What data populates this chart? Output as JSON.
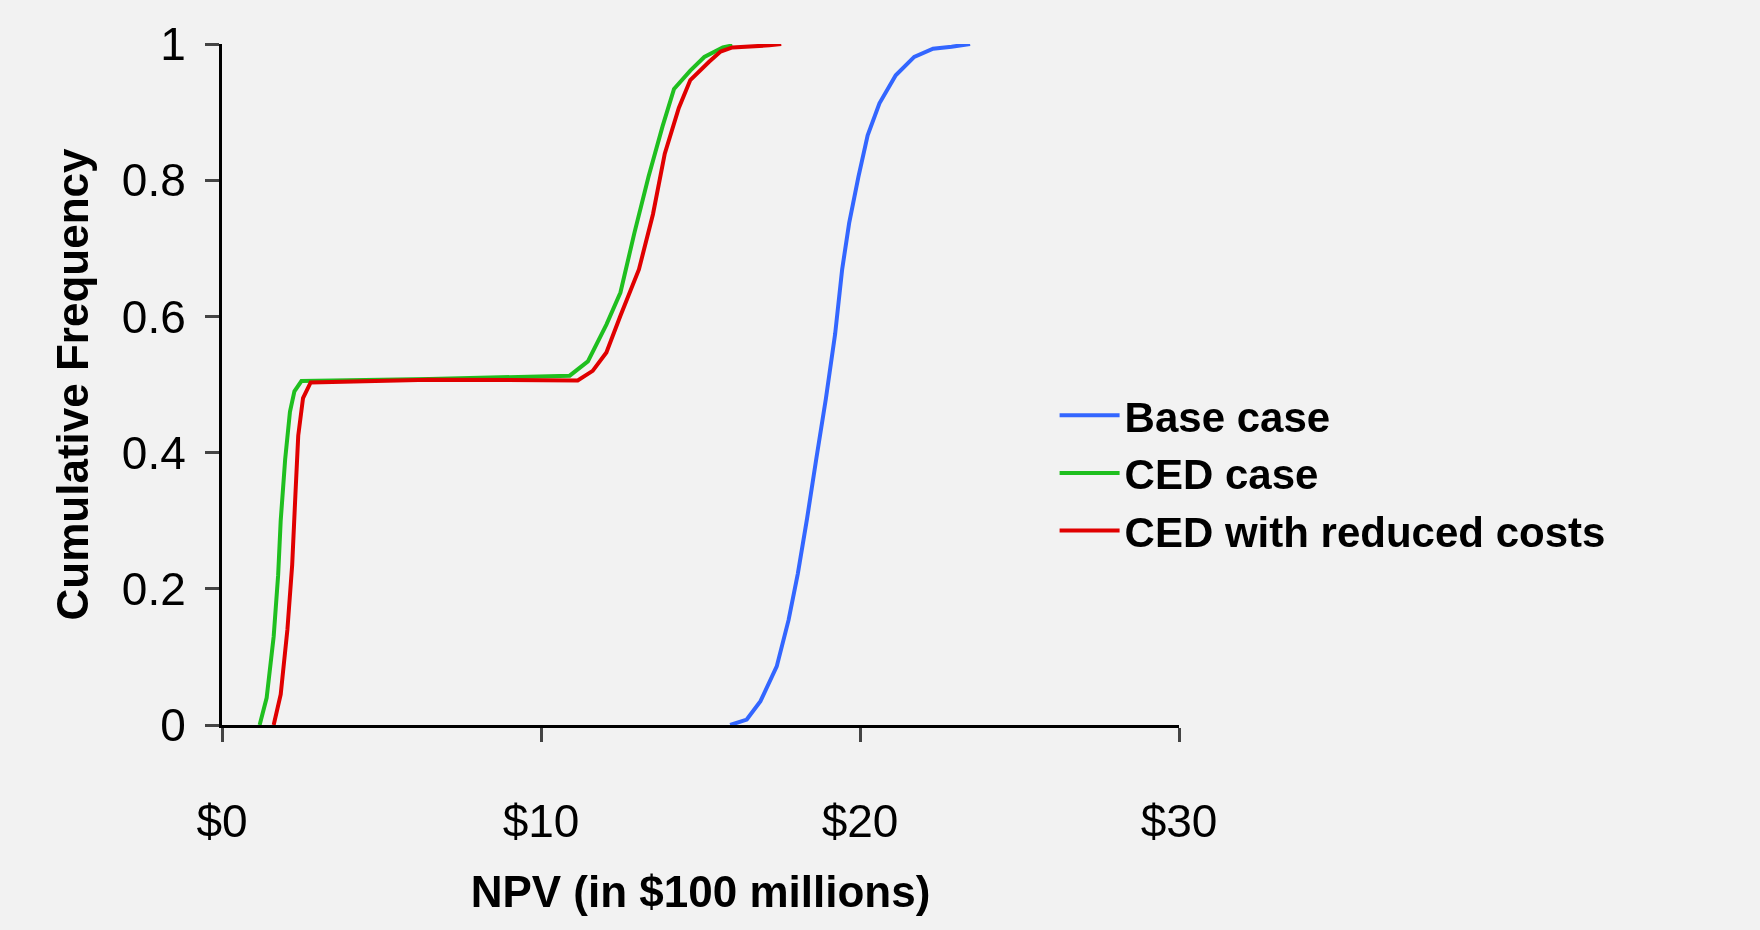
{
  "chart_data": {
    "type": "line",
    "xlabel": "NPV (in $100 millions)",
    "ylabel": "Cumulative Frequency",
    "xlim": [
      0,
      30
    ],
    "xticks": [
      {
        "value": 0,
        "label": "$0"
      },
      {
        "value": 10,
        "label": "$10"
      },
      {
        "value": 20,
        "label": "$20"
      },
      {
        "value": 30,
        "label": "$30"
      }
    ],
    "ylim": [
      0,
      1
    ],
    "yticks": [
      0,
      0.2,
      0.4,
      0.6,
      0.8,
      1
    ],
    "grid": false,
    "legend": "right",
    "series": [
      {
        "name": "Base case",
        "color": "#3366ff",
        "x": [
          15.93,
          16.45,
          16.88,
          17.39,
          17.76,
          18.05,
          18.34,
          18.63,
          18.93,
          19.22,
          19.44,
          19.66,
          19.95,
          20.24,
          20.61,
          21.12,
          21.7,
          22.29,
          22.87,
          23.45
        ],
        "values": [
          0,
          0.008,
          0.035,
          0.086,
          0.154,
          0.222,
          0.303,
          0.391,
          0.479,
          0.574,
          0.669,
          0.737,
          0.805,
          0.866,
          0.913,
          0.954,
          0.981,
          0.993,
          0.996,
          1.0
        ]
      },
      {
        "name": "CED case",
        "color": "#1fbf1f",
        "x": [
          1.18,
          1.4,
          1.62,
          1.76,
          1.84,
          1.98,
          2.13,
          2.27,
          2.49,
          6.5,
          10.9,
          11.47,
          12.05,
          12.49,
          12.93,
          13.37,
          13.81,
          14.17,
          14.68,
          15.12,
          15.7,
          16.0
        ],
        "values": [
          0,
          0.04,
          0.13,
          0.22,
          0.3,
          0.39,
          0.46,
          0.49,
          0.505,
          0.508,
          0.513,
          0.534,
          0.588,
          0.635,
          0.723,
          0.805,
          0.879,
          0.934,
          0.961,
          0.981,
          0.995,
          0.998
        ]
      },
      {
        "name": "CED with reduced costs",
        "color": "#e00000",
        "x": [
          1.62,
          1.84,
          2.05,
          2.2,
          2.3,
          2.39,
          2.54,
          2.78,
          6.5,
          11.15,
          11.62,
          12.05,
          12.49,
          13.07,
          13.51,
          13.88,
          14.32,
          14.68,
          15.27,
          15.63,
          16.0,
          17.16,
          17.53
        ],
        "values": [
          0,
          0.045,
          0.14,
          0.235,
          0.337,
          0.425,
          0.48,
          0.503,
          0.507,
          0.506,
          0.52,
          0.547,
          0.601,
          0.669,
          0.75,
          0.839,
          0.906,
          0.947,
          0.974,
          0.989,
          0.995,
          0.998,
          1.0
        ]
      }
    ]
  }
}
